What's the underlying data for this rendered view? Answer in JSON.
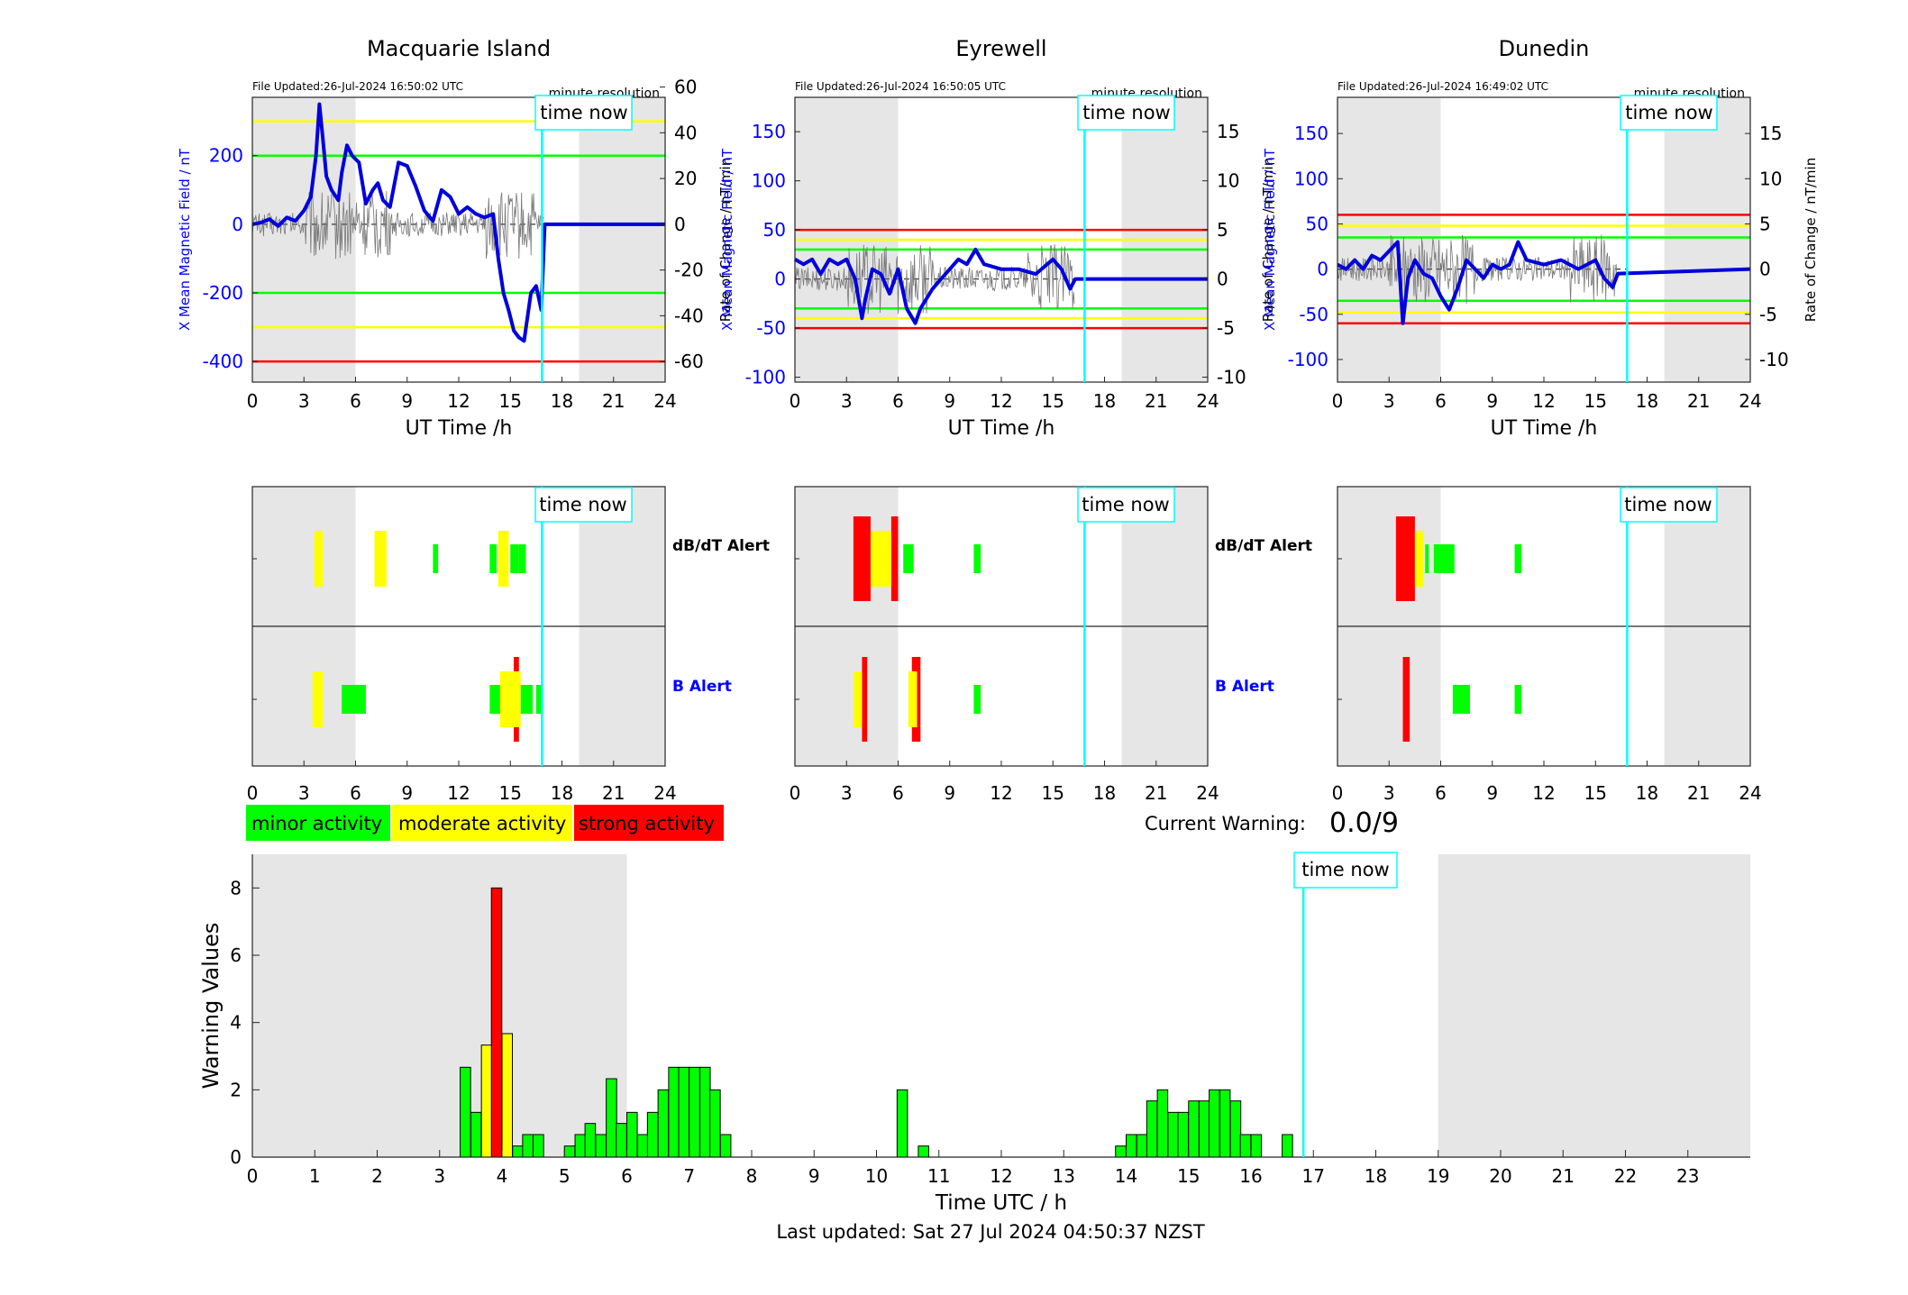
{
  "panels": [
    {
      "station": "Macquarie Island",
      "file_updated": "File Updated:26-Jul-2024 16:50:02 UTC",
      "resolution": "minute resolution",
      "ylabel_left": "X Mean Magnetic Field / nT",
      "ylabel_right": "Rate of Change / nT/min",
      "xlabel": "UT Time /h",
      "x_ticks": [
        "0",
        "3",
        "6",
        "9",
        "12",
        "15",
        "18",
        "21",
        "24"
      ],
      "left_ylim": [
        -460,
        370
      ],
      "left_ticks": [
        -400,
        -200,
        0,
        200
      ],
      "right_ticks": [
        -60,
        -40,
        -20,
        0,
        20,
        40,
        60
      ],
      "right_per_left": 0.15,
      "thresholds": [
        {
          "value": 300,
          "color": "#ffff00"
        },
        {
          "value": 200,
          "color": "#00ff00"
        },
        {
          "value": -200,
          "color": "#00ff00"
        },
        {
          "value": -300,
          "color": "#ffff00"
        },
        {
          "value": -400,
          "color": "#ff0000"
        }
      ],
      "series_x": [
        [
          0,
          0
        ],
        [
          0.5,
          5
        ],
        [
          1,
          15
        ],
        [
          1.5,
          -5
        ],
        [
          2,
          20
        ],
        [
          2.5,
          10
        ],
        [
          3,
          40
        ],
        [
          3.4,
          80
        ],
        [
          3.7,
          200
        ],
        [
          3.9,
          350
        ],
        [
          4.1,
          250
        ],
        [
          4.3,
          140
        ],
        [
          4.6,
          100
        ],
        [
          5,
          70
        ],
        [
          5.2,
          150
        ],
        [
          5.5,
          230
        ],
        [
          5.8,
          200
        ],
        [
          6.2,
          180
        ],
        [
          6.6,
          60
        ],
        [
          7,
          100
        ],
        [
          7.3,
          120
        ],
        [
          7.6,
          70
        ],
        [
          8,
          50
        ],
        [
          8.5,
          180
        ],
        [
          9,
          170
        ],
        [
          9.5,
          110
        ],
        [
          10,
          40
        ],
        [
          10.5,
          10
        ],
        [
          11,
          100
        ],
        [
          11.5,
          80
        ],
        [
          12,
          30
        ],
        [
          12.5,
          50
        ],
        [
          13,
          30
        ],
        [
          13.5,
          20
        ],
        [
          14,
          30
        ],
        [
          14.3,
          -100
        ],
        [
          14.6,
          -200
        ],
        [
          14.9,
          -250
        ],
        [
          15.2,
          -310
        ],
        [
          15.5,
          -330
        ],
        [
          15.8,
          -340
        ],
        [
          16.2,
          -200
        ],
        [
          16.5,
          -180
        ],
        [
          16.8,
          -250
        ],
        [
          17,
          0
        ],
        [
          24,
          0
        ]
      ]
    },
    {
      "station": "Eyrewell",
      "file_updated": "File Updated:26-Jul-2024 16:50:05 UTC",
      "resolution": "minute resolution",
      "ylabel_left": "X Mean Magnetic Field / nT",
      "ylabel_right": "Rate of Change / nT/min",
      "xlabel": "UT Time /h",
      "x_ticks": [
        "0",
        "3",
        "6",
        "9",
        "12",
        "15",
        "18",
        "21",
        "24"
      ],
      "left_ylim": [
        -105,
        185
      ],
      "left_ticks": [
        -100,
        -50,
        0,
        50,
        100,
        150
      ],
      "right_ticks": [
        -10,
        -5,
        0,
        5,
        10,
        15
      ],
      "right_per_left": 0.1,
      "thresholds": [
        {
          "value": 50,
          "color": "#ff0000"
        },
        {
          "value": 40,
          "color": "#ffff00"
        },
        {
          "value": 30,
          "color": "#00ff00"
        },
        {
          "value": -30,
          "color": "#00ff00"
        },
        {
          "value": -40,
          "color": "#ffff00"
        },
        {
          "value": -50,
          "color": "#ff0000"
        }
      ],
      "series_x": [
        [
          0,
          20
        ],
        [
          0.5,
          15
        ],
        [
          1,
          20
        ],
        [
          1.5,
          5
        ],
        [
          2,
          20
        ],
        [
          2.5,
          15
        ],
        [
          3,
          20
        ],
        [
          3.5,
          0
        ],
        [
          3.9,
          -40
        ],
        [
          4.1,
          -20
        ],
        [
          4.5,
          10
        ],
        [
          5,
          5
        ],
        [
          5.5,
          -15
        ],
        [
          6,
          10
        ],
        [
          6.5,
          -30
        ],
        [
          7,
          -45
        ],
        [
          7.3,
          -30
        ],
        [
          8,
          -10
        ],
        [
          8.5,
          0
        ],
        [
          9,
          10
        ],
        [
          9.5,
          20
        ],
        [
          10,
          15
        ],
        [
          10.5,
          30
        ],
        [
          11,
          15
        ],
        [
          12,
          10
        ],
        [
          13,
          10
        ],
        [
          14,
          5
        ],
        [
          15,
          20
        ],
        [
          15.5,
          10
        ],
        [
          16,
          -10
        ],
        [
          16.3,
          0
        ],
        [
          24,
          0
        ]
      ]
    },
    {
      "station": "Dunedin",
      "file_updated": "File Updated:26-Jul-2024 16:49:02 UTC",
      "resolution": "minute resolution",
      "ylabel_left": "X Mean Magnetic Field / nT",
      "ylabel_right": "Rate of Change / nT/min",
      "xlabel": "UT Time /h",
      "x_ticks": [
        "0",
        "3",
        "6",
        "9",
        "12",
        "15",
        "18",
        "21",
        "24"
      ],
      "left_ylim": [
        -125,
        190
      ],
      "left_ticks": [
        -100,
        -50,
        0,
        50,
        100,
        150
      ],
      "right_ticks": [
        -10,
        -5,
        0,
        5,
        10,
        15
      ],
      "right_per_left": 0.1,
      "thresholds": [
        {
          "value": 60,
          "color": "#ff0000"
        },
        {
          "value": 48,
          "color": "#ffff00"
        },
        {
          "value": 35,
          "color": "#00ff00"
        },
        {
          "value": -35,
          "color": "#00ff00"
        },
        {
          "value": -48,
          "color": "#ffff00"
        },
        {
          "value": -60,
          "color": "#ff0000"
        }
      ],
      "series_x": [
        [
          0,
          5
        ],
        [
          0.5,
          0
        ],
        [
          1,
          10
        ],
        [
          1.5,
          0
        ],
        [
          2,
          15
        ],
        [
          2.5,
          10
        ],
        [
          3,
          20
        ],
        [
          3.5,
          30
        ],
        [
          3.8,
          -60
        ],
        [
          4.1,
          -10
        ],
        [
          4.5,
          10
        ],
        [
          5,
          -5
        ],
        [
          5.5,
          -10
        ],
        [
          6,
          -30
        ],
        [
          6.5,
          -45
        ],
        [
          7,
          -20
        ],
        [
          7.5,
          10
        ],
        [
          8,
          0
        ],
        [
          8.5,
          -10
        ],
        [
          9,
          5
        ],
        [
          9.5,
          0
        ],
        [
          10,
          5
        ],
        [
          10.5,
          30
        ],
        [
          11,
          10
        ],
        [
          12,
          5
        ],
        [
          13,
          10
        ],
        [
          14,
          0
        ],
        [
          15,
          10
        ],
        [
          15.5,
          -10
        ],
        [
          16,
          -20
        ],
        [
          16.3,
          -5
        ],
        [
          24,
          0
        ]
      ]
    }
  ],
  "time_now_label": "time now",
  "time_now_h": 16.84,
  "night_shading": [
    [
      0,
      6
    ],
    [
      19,
      24
    ]
  ],
  "alerts": {
    "row_labels": {
      "dbdt": "dB/dT Alert",
      "b": "B Alert"
    },
    "stations": [
      {
        "dbdt": [
          {
            "t0": 3.6,
            "t1": 4.1,
            "level": 2
          },
          {
            "t0": 7.1,
            "t1": 7.8,
            "level": 2
          },
          {
            "t0": 10.5,
            "t1": 10.8,
            "level": 1
          },
          {
            "t0": 13.8,
            "t1": 14.2,
            "level": 1
          },
          {
            "t0": 14.3,
            "t1": 14.9,
            "level": 2
          },
          {
            "t0": 15.0,
            "t1": 15.5,
            "level": 1
          },
          {
            "t0": 15.5,
            "t1": 15.9,
            "level": 1
          }
        ],
        "b": [
          {
            "t0": 3.5,
            "t1": 4.1,
            "level": 2
          },
          {
            "t0": 5.2,
            "t1": 6.6,
            "level": 1
          },
          {
            "t0": 13.8,
            "t1": 14.4,
            "level": 1
          },
          {
            "t0": 14.4,
            "t1": 15.6,
            "level": 2
          },
          {
            "t0": 15.2,
            "t1": 15.5,
            "level": 3
          },
          {
            "t0": 15.6,
            "t1": 16.3,
            "level": 1
          },
          {
            "t0": 16.5,
            "t1": 16.8,
            "level": 1
          }
        ]
      },
      {
        "dbdt": [
          {
            "t0": 3.4,
            "t1": 4.4,
            "level": 3
          },
          {
            "t0": 4.4,
            "t1": 5.6,
            "level": 2
          },
          {
            "t0": 5.6,
            "t1": 6.0,
            "level": 3
          },
          {
            "t0": 6.3,
            "t1": 6.9,
            "level": 1
          },
          {
            "t0": 10.4,
            "t1": 10.8,
            "level": 1
          }
        ],
        "b": [
          {
            "t0": 3.4,
            "t1": 3.9,
            "level": 2
          },
          {
            "t0": 3.9,
            "t1": 4.2,
            "level": 3
          },
          {
            "t0": 6.6,
            "t1": 7.1,
            "level": 2
          },
          {
            "t0": 6.8,
            "t1": 7.3,
            "level": 3
          },
          {
            "t0": 10.4,
            "t1": 10.8,
            "level": 1
          }
        ]
      },
      {
        "dbdt": [
          {
            "t0": 3.4,
            "t1": 4.5,
            "level": 3
          },
          {
            "t0": 4.5,
            "t1": 5.0,
            "level": 2
          },
          {
            "t0": 5.1,
            "t1": 5.3,
            "level": 1
          },
          {
            "t0": 5.6,
            "t1": 6.8,
            "level": 1
          },
          {
            "t0": 10.3,
            "t1": 10.7,
            "level": 1
          }
        ],
        "b": [
          {
            "t0": 3.8,
            "t1": 4.2,
            "level": 3
          },
          {
            "t0": 6.7,
            "t1": 7.7,
            "level": 1
          },
          {
            "t0": 10.3,
            "t1": 10.7,
            "level": 1
          }
        ]
      }
    ]
  },
  "legend": [
    {
      "label": "minor activity",
      "color": "#00ff00"
    },
    {
      "label": "moderate activity",
      "color": "#ffff00"
    },
    {
      "label": "strong activity",
      "color": "#ff0000"
    }
  ],
  "current_warning_label": "Current Warning:",
  "current_warning_value": "0.0/9",
  "chart_data": {
    "type": "bar",
    "xlabel": "Time UTC / h",
    "ylabel": "Warning Values",
    "xlim": [
      0,
      24
    ],
    "ylim": [
      0,
      9
    ],
    "x_ticks": [
      "0",
      "1",
      "2",
      "3",
      "4",
      "5",
      "6",
      "7",
      "8",
      "9",
      "10",
      "11",
      "12",
      "13",
      "14",
      "15",
      "16",
      "17",
      "18",
      "19",
      "20",
      "21",
      "22",
      "23"
    ],
    "y_ticks": [
      "0",
      "2",
      "4",
      "6",
      "8"
    ],
    "bar_width_h": 0.1667,
    "bars": [
      {
        "t": 3.33,
        "v": 2.67,
        "c": "g"
      },
      {
        "t": 3.5,
        "v": 1.33,
        "c": "g"
      },
      {
        "t": 3.67,
        "v": 3.33,
        "c": "y"
      },
      {
        "t": 3.83,
        "v": 8.0,
        "c": "r"
      },
      {
        "t": 4.0,
        "v": 3.67,
        "c": "y"
      },
      {
        "t": 4.17,
        "v": 0.33,
        "c": "g"
      },
      {
        "t": 4.33,
        "v": 0.67,
        "c": "g"
      },
      {
        "t": 4.5,
        "v": 0.67,
        "c": "g"
      },
      {
        "t": 5.0,
        "v": 0.33,
        "c": "g"
      },
      {
        "t": 5.17,
        "v": 0.67,
        "c": "g"
      },
      {
        "t": 5.33,
        "v": 1.0,
        "c": "g"
      },
      {
        "t": 5.5,
        "v": 0.67,
        "c": "g"
      },
      {
        "t": 5.67,
        "v": 2.33,
        "c": "g"
      },
      {
        "t": 5.83,
        "v": 1.0,
        "c": "g"
      },
      {
        "t": 6.0,
        "v": 1.33,
        "c": "g"
      },
      {
        "t": 6.17,
        "v": 0.67,
        "c": "g"
      },
      {
        "t": 6.33,
        "v": 1.33,
        "c": "g"
      },
      {
        "t": 6.5,
        "v": 2.0,
        "c": "g"
      },
      {
        "t": 6.67,
        "v": 2.67,
        "c": "g"
      },
      {
        "t": 6.83,
        "v": 2.67,
        "c": "g"
      },
      {
        "t": 7.0,
        "v": 2.67,
        "c": "g"
      },
      {
        "t": 7.17,
        "v": 2.67,
        "c": "g"
      },
      {
        "t": 7.33,
        "v": 2.0,
        "c": "g"
      },
      {
        "t": 7.5,
        "v": 0.67,
        "c": "g"
      },
      {
        "t": 10.33,
        "v": 2.0,
        "c": "g"
      },
      {
        "t": 10.67,
        "v": 0.33,
        "c": "g"
      },
      {
        "t": 13.83,
        "v": 0.33,
        "c": "g"
      },
      {
        "t": 14.0,
        "v": 0.67,
        "c": "g"
      },
      {
        "t": 14.17,
        "v": 0.67,
        "c": "g"
      },
      {
        "t": 14.33,
        "v": 1.67,
        "c": "g"
      },
      {
        "t": 14.5,
        "v": 2.0,
        "c": "g"
      },
      {
        "t": 14.67,
        "v": 1.33,
        "c": "g"
      },
      {
        "t": 14.83,
        "v": 1.33,
        "c": "g"
      },
      {
        "t": 15.0,
        "v": 1.67,
        "c": "g"
      },
      {
        "t": 15.17,
        "v": 1.67,
        "c": "g"
      },
      {
        "t": 15.33,
        "v": 2.0,
        "c": "g"
      },
      {
        "t": 15.5,
        "v": 2.0,
        "c": "g"
      },
      {
        "t": 15.67,
        "v": 1.67,
        "c": "g"
      },
      {
        "t": 15.83,
        "v": 0.67,
        "c": "g"
      },
      {
        "t": 16.0,
        "v": 0.67,
        "c": "g"
      },
      {
        "t": 16.5,
        "v": 0.67,
        "c": "g"
      }
    ]
  },
  "last_updated": "Last updated: Sat 27 Jul 2024 04:50:37 NZST",
  "colors": {
    "g": "#00ff00",
    "y": "#ffff00",
    "r": "#ff0000",
    "field": "#0000dd",
    "time_now": "#00ffff",
    "night": "#e6e6e6",
    "axis_blue": "#0000ff"
  }
}
